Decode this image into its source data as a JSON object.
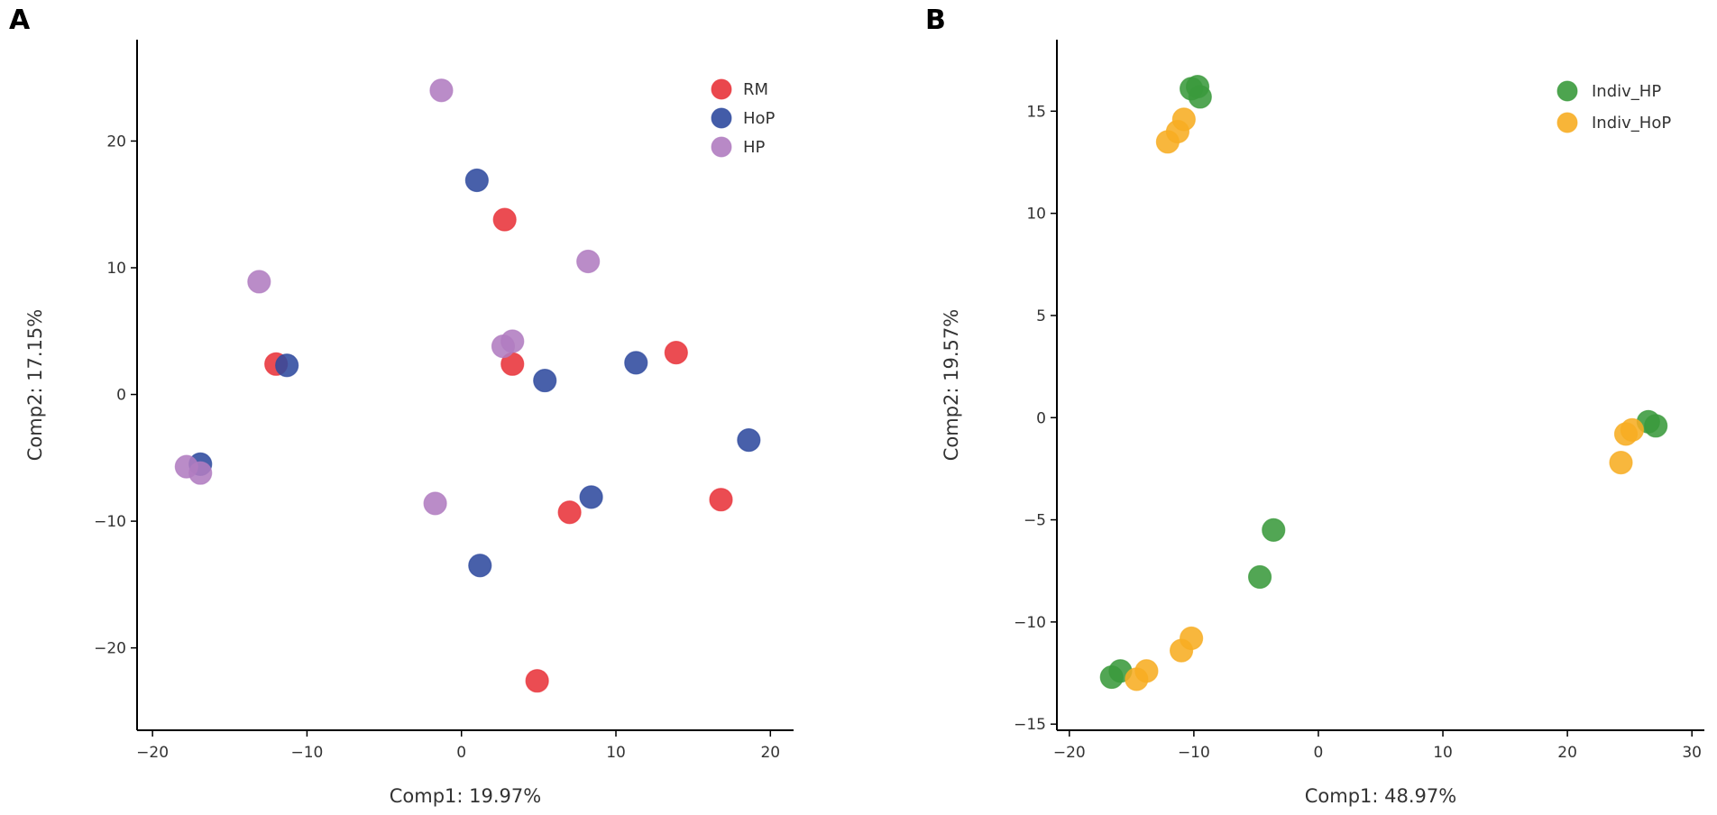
{
  "chart_data": [
    {
      "panel": "A",
      "type": "scatter",
      "xlabel": "Comp1: 19.97%",
      "ylabel": "Comp2: 17.15%",
      "xlim": [
        -21,
        21.5
      ],
      "ylim": [
        -26.5,
        28
      ],
      "xticks": [
        -20,
        -10,
        0,
        10,
        20
      ],
      "xtick_labels": [
        "−20",
        "−10",
        "0",
        "10",
        "20"
      ],
      "yticks": [
        -20,
        -10,
        0,
        10,
        20
      ],
      "ytick_labels": [
        "−20",
        "−10",
        "0",
        "10",
        "20"
      ],
      "legend_position": "top-right",
      "series": [
        {
          "name": "RM",
          "color": "#e8333a",
          "points": [
            [
              -12.0,
              2.4
            ],
            [
              2.8,
              13.8
            ],
            [
              3.3,
              2.4
            ],
            [
              13.9,
              3.3
            ],
            [
              7.0,
              -9.3
            ],
            [
              16.8,
              -8.3
            ],
            [
              4.9,
              -22.6
            ]
          ]
        },
        {
          "name": "HoP",
          "color": "#2f4a9e",
          "points": [
            [
              -11.3,
              2.3
            ],
            [
              1.0,
              16.9
            ],
            [
              5.4,
              1.1
            ],
            [
              11.3,
              2.5
            ],
            [
              18.6,
              -3.6
            ],
            [
              8.4,
              -8.1
            ],
            [
              -16.9,
              -5.5
            ],
            [
              1.2,
              -13.5
            ]
          ]
        },
        {
          "name": "HP",
          "color": "#b07cc0",
          "points": [
            [
              -1.3,
              24.0
            ],
            [
              -13.1,
              8.9
            ],
            [
              8.2,
              10.5
            ],
            [
              2.7,
              3.8
            ],
            [
              3.3,
              4.2
            ],
            [
              -17.8,
              -5.7
            ],
            [
              -16.9,
              -6.2
            ],
            [
              -1.7,
              -8.6
            ]
          ]
        }
      ]
    },
    {
      "panel": "B",
      "type": "scatter",
      "xlabel": "Comp1: 48.97%",
      "ylabel": "Comp2: 19.57%",
      "xlim": [
        -21,
        31
      ],
      "ylim": [
        -15.3,
        18.5
      ],
      "xticks": [
        -20,
        -10,
        0,
        10,
        20,
        30
      ],
      "xtick_labels": [
        "−20",
        "−10",
        "0",
        "10",
        "20",
        "30"
      ],
      "yticks": [
        -15,
        -10,
        -5,
        0,
        5,
        10,
        15
      ],
      "ytick_labels": [
        "−15",
        "−10",
        "−5",
        "0",
        "5",
        "10",
        "15"
      ],
      "legend_position": "top-right",
      "series": [
        {
          "name": "Indiv_HP",
          "color": "#3a9a3c",
          "points": [
            [
              -10.2,
              16.1
            ],
            [
              -9.7,
              16.2
            ],
            [
              -9.5,
              15.7
            ],
            [
              26.5,
              -0.2
            ],
            [
              27.1,
              -0.4
            ],
            [
              -3.6,
              -5.5
            ],
            [
              -4.7,
              -7.8
            ],
            [
              -16.6,
              -12.7
            ],
            [
              -15.9,
              -12.4
            ]
          ]
        },
        {
          "name": "Indiv_HoP",
          "color": "#f7ad22",
          "points": [
            [
              -12.1,
              13.5
            ],
            [
              -11.3,
              14.0
            ],
            [
              -10.8,
              14.6
            ],
            [
              24.7,
              -0.8
            ],
            [
              25.2,
              -0.6
            ],
            [
              24.3,
              -2.2
            ],
            [
              -11.0,
              -11.4
            ],
            [
              -10.2,
              -10.8
            ],
            [
              -14.6,
              -12.8
            ],
            [
              -13.8,
              -12.4
            ]
          ]
        }
      ]
    }
  ]
}
